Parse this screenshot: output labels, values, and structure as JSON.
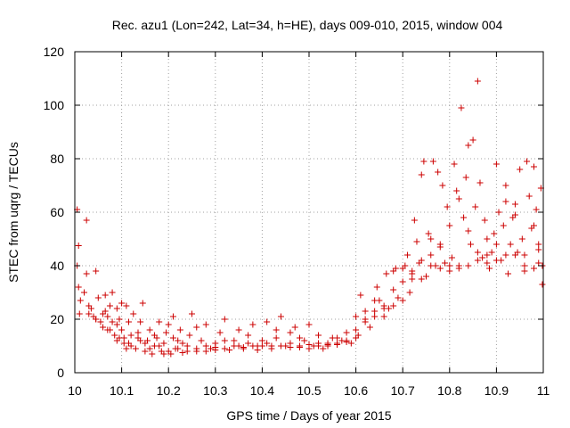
{
  "chart_data": {
    "type": "scatter",
    "title": "Rec. azu1 (Lon=242, Lat=34, h=HE), days 009-010, 2015, window 004",
    "xlabel": "GPS time / Days of year 2015",
    "ylabel": "STEC from uqrg / TECUs",
    "xlim": [
      10.0,
      11.0
    ],
    "ylim": [
      0,
      120
    ],
    "xticks": [
      "10",
      "10.1",
      "10.2",
      "10.3",
      "10.4",
      "10.5",
      "10.6",
      "10.7",
      "10.8",
      "10.9",
      "11"
    ],
    "yticks": [
      "0",
      "20",
      "40",
      "60",
      "80",
      "100",
      "120"
    ],
    "grid": true,
    "marker": "+",
    "color": "#cc0000",
    "series": [
      {
        "points": [
          [
            10.005,
            61
          ],
          [
            10.008,
            47.5
          ],
          [
            10.005,
            40
          ],
          [
            10.008,
            32
          ],
          [
            10.012,
            27
          ],
          [
            10.01,
            22
          ],
          [
            10.025,
            57
          ],
          [
            10.025,
            37
          ],
          [
            10.03,
            25
          ],
          [
            10.03,
            22
          ],
          [
            10.04,
            21
          ],
          [
            10.045,
            38
          ],
          [
            10.045,
            20
          ],
          [
            10.05,
            28
          ],
          [
            10.055,
            19
          ],
          [
            10.06,
            17
          ],
          [
            10.065,
            29
          ],
          [
            10.065,
            23
          ],
          [
            10.07,
            21
          ],
          [
            10.075,
            16
          ],
          [
            10.08,
            30
          ],
          [
            10.08,
            19
          ],
          [
            10.085,
            14
          ],
          [
            10.09,
            24
          ],
          [
            10.09,
            12
          ],
          [
            10.095,
            20
          ],
          [
            10.1,
            26
          ],
          [
            10.1,
            16
          ],
          [
            10.105,
            11
          ],
          [
            10.11,
            25
          ],
          [
            10.11,
            9
          ],
          [
            10.115,
            19
          ],
          [
            10.12,
            14
          ],
          [
            10.125,
            22
          ],
          [
            10.13,
            9
          ],
          [
            10.135,
            13
          ],
          [
            10.14,
            19
          ],
          [
            10.145,
            26
          ],
          [
            10.15,
            8
          ],
          [
            10.155,
            12
          ],
          [
            10.16,
            16
          ],
          [
            10.165,
            7
          ],
          [
            10.17,
            10
          ],
          [
            10.175,
            13
          ],
          [
            10.18,
            19
          ],
          [
            10.185,
            8
          ],
          [
            10.19,
            11
          ],
          [
            10.195,
            15
          ],
          [
            10.2,
            18
          ],
          [
            10.205,
            7
          ],
          [
            10.21,
            21
          ],
          [
            10.215,
            9
          ],
          [
            10.22,
            12
          ],
          [
            10.225,
            16
          ],
          [
            10.23,
            7.5
          ],
          [
            10.24,
            10
          ],
          [
            10.245,
            14
          ],
          [
            10.25,
            22
          ],
          [
            10.26,
            8
          ],
          [
            10.27,
            12
          ],
          [
            10.28,
            18
          ],
          [
            10.29,
            9
          ],
          [
            10.3,
            11
          ],
          [
            10.31,
            15
          ],
          [
            10.32,
            20
          ],
          [
            10.33,
            8.5
          ],
          [
            10.34,
            12
          ],
          [
            10.35,
            16
          ],
          [
            10.36,
            9
          ],
          [
            10.37,
            14
          ],
          [
            10.38,
            18
          ],
          [
            10.39,
            10
          ],
          [
            10.4,
            12
          ],
          [
            10.41,
            19
          ],
          [
            10.42,
            9
          ],
          [
            10.43,
            13
          ],
          [
            10.44,
            21
          ],
          [
            10.45,
            10
          ],
          [
            10.46,
            15
          ],
          [
            10.47,
            17
          ],
          [
            10.48,
            9.5
          ],
          [
            10.49,
            12
          ],
          [
            10.5,
            18
          ],
          [
            10.51,
            10
          ],
          [
            10.52,
            14
          ],
          [
            10.53,
            9
          ],
          [
            10.54,
            11
          ],
          [
            10.55,
            13
          ],
          [
            10.56,
            10.5
          ],
          [
            10.57,
            12
          ],
          [
            10.58,
            15
          ],
          [
            10.59,
            11
          ],
          [
            10.6,
            21
          ],
          [
            10.605,
            14
          ],
          [
            10.61,
            29
          ],
          [
            10.62,
            20
          ],
          [
            10.63,
            17
          ],
          [
            10.64,
            23
          ],
          [
            10.645,
            32
          ],
          [
            10.65,
            27
          ],
          [
            10.66,
            21
          ],
          [
            10.665,
            37
          ],
          [
            10.67,
            24
          ],
          [
            10.68,
            31
          ],
          [
            10.685,
            39
          ],
          [
            10.69,
            28
          ],
          [
            10.7,
            34
          ],
          [
            10.705,
            40
          ],
          [
            10.71,
            44
          ],
          [
            10.715,
            30
          ],
          [
            10.72,
            38
          ],
          [
            10.725,
            57
          ],
          [
            10.73,
            49
          ],
          [
            10.735,
            41
          ],
          [
            10.74,
            74
          ],
          [
            10.745,
            79
          ],
          [
            10.75,
            36
          ],
          [
            10.755,
            52
          ],
          [
            10.76,
            44
          ],
          [
            10.765,
            79
          ],
          [
            10.77,
            40
          ],
          [
            10.775,
            75
          ],
          [
            10.78,
            47
          ],
          [
            10.785,
            70
          ],
          [
            10.79,
            41
          ],
          [
            10.795,
            62
          ],
          [
            10.8,
            55
          ],
          [
            10.805,
            43
          ],
          [
            10.81,
            78
          ],
          [
            10.815,
            68
          ],
          [
            10.82,
            39
          ],
          [
            10.825,
            99
          ],
          [
            10.83,
            58
          ],
          [
            10.835,
            73
          ],
          [
            10.84,
            85
          ],
          [
            10.845,
            48
          ],
          [
            10.85,
            87
          ],
          [
            10.855,
            62
          ],
          [
            10.86,
            109
          ],
          [
            10.865,
            71
          ],
          [
            10.87,
            43
          ],
          [
            10.875,
            57
          ],
          [
            10.88,
            50
          ],
          [
            10.885,
            39
          ],
          [
            10.89,
            45
          ],
          [
            10.895,
            52
          ],
          [
            10.9,
            78
          ],
          [
            10.905,
            60
          ],
          [
            10.91,
            42
          ],
          [
            10.915,
            55
          ],
          [
            10.92,
            70
          ],
          [
            10.925,
            37
          ],
          [
            10.93,
            48
          ],
          [
            10.935,
            58
          ],
          [
            10.94,
            63
          ],
          [
            10.945,
            45
          ],
          [
            10.95,
            76
          ],
          [
            10.955,
            50
          ],
          [
            10.96,
            40
          ],
          [
            10.965,
            79
          ],
          [
            10.97,
            66
          ],
          [
            10.975,
            54
          ],
          [
            10.98,
            77
          ],
          [
            10.985,
            61
          ],
          [
            10.99,
            48
          ],
          [
            10.995,
            69
          ],
          [
            10.998,
            40
          ],
          [
            10.998,
            33
          ],
          [
            10.02,
            30
          ],
          [
            10.035,
            24
          ],
          [
            10.06,
            22
          ],
          [
            10.075,
            25
          ],
          [
            10.09,
            18
          ],
          [
            10.105,
            13
          ],
          [
            10.12,
            10
          ],
          [
            10.135,
            15
          ],
          [
            10.15,
            11
          ],
          [
            10.17,
            14
          ],
          [
            10.19,
            7
          ],
          [
            10.21,
            13
          ],
          [
            10.23,
            11
          ],
          [
            10.26,
            17
          ],
          [
            10.28,
            8
          ],
          [
            10.3,
            9.5
          ],
          [
            10.32,
            12
          ],
          [
            10.35,
            10
          ],
          [
            10.37,
            11
          ],
          [
            10.39,
            8.5
          ],
          [
            10.41,
            11
          ],
          [
            10.43,
            16
          ],
          [
            10.46,
            11
          ],
          [
            10.48,
            13
          ],
          [
            10.5,
            9
          ],
          [
            10.52,
            10
          ],
          [
            10.54,
            10.5
          ],
          [
            10.56,
            13
          ],
          [
            10.58,
            12
          ],
          [
            10.6,
            16
          ],
          [
            10.62,
            23
          ],
          [
            10.64,
            27
          ],
          [
            10.66,
            25
          ],
          [
            10.68,
            38
          ],
          [
            10.7,
            39
          ],
          [
            10.72,
            37
          ],
          [
            10.74,
            42
          ],
          [
            10.76,
            50
          ],
          [
            10.78,
            48
          ],
          [
            10.8,
            38
          ],
          [
            10.82,
            65
          ],
          [
            10.84,
            53
          ],
          [
            10.86,
            45
          ],
          [
            10.88,
            44
          ],
          [
            10.9,
            48
          ],
          [
            10.92,
            64
          ],
          [
            10.94,
            59
          ],
          [
            10.96,
            44
          ],
          [
            10.98,
            55
          ],
          [
            10.99,
            46
          ],
          [
            10.045,
            20
          ],
          [
            10.07,
            16
          ],
          [
            10.095,
            13
          ],
          [
            10.115,
            11
          ],
          [
            10.14,
            12
          ],
          [
            10.16,
            9
          ],
          [
            10.18,
            10
          ],
          [
            10.2,
            8
          ],
          [
            10.22,
            9
          ],
          [
            10.24,
            8
          ],
          [
            10.26,
            9
          ],
          [
            10.28,
            10
          ],
          [
            10.3,
            8.5
          ],
          [
            10.32,
            9
          ],
          [
            10.34,
            10
          ],
          [
            10.36,
            9.5
          ],
          [
            10.38,
            10
          ],
          [
            10.4,
            10
          ],
          [
            10.42,
            10
          ],
          [
            10.44,
            10
          ],
          [
            10.46,
            9.5
          ],
          [
            10.48,
            10
          ],
          [
            10.5,
            10.5
          ],
          [
            10.52,
            11
          ],
          [
            10.54,
            10
          ],
          [
            10.56,
            11
          ],
          [
            10.58,
            11.5
          ],
          [
            10.6,
            13
          ],
          [
            10.62,
            19
          ],
          [
            10.64,
            21
          ],
          [
            10.66,
            24
          ],
          [
            10.68,
            25
          ],
          [
            10.7,
            27
          ],
          [
            10.72,
            35
          ],
          [
            10.74,
            35
          ],
          [
            10.76,
            40
          ],
          [
            10.78,
            39
          ],
          [
            10.8,
            40
          ],
          [
            10.82,
            40
          ],
          [
            10.84,
            40
          ],
          [
            10.86,
            42
          ],
          [
            10.88,
            41
          ],
          [
            10.9,
            42
          ],
          [
            10.92,
            44
          ],
          [
            10.94,
            44
          ],
          [
            10.96,
            38
          ],
          [
            10.98,
            39
          ],
          [
            10.99,
            41
          ]
        ]
      }
    ]
  }
}
